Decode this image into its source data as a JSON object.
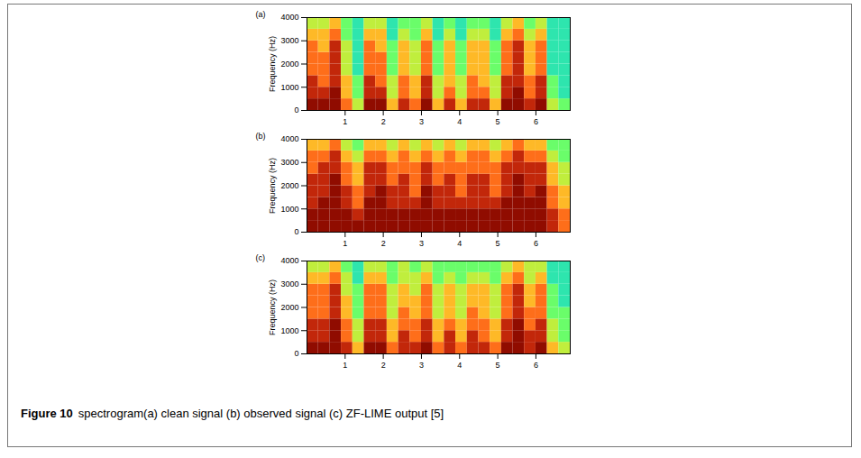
{
  "caption": {
    "label": "Figure 10",
    "text": "spectrogram(a) clean signal (b) observed signal (c) ZF-LIME output [5]"
  },
  "chart_data": [
    {
      "type": "heatmap",
      "title": "(a)",
      "ylabel": "Frequency (Hz)",
      "color": "turbo",
      "xlim": [
        0,
        6.9
      ],
      "xticks": [
        1,
        2,
        3,
        4,
        5,
        6
      ],
      "ylim": [
        0,
        4000
      ],
      "yticks": [
        0,
        1000,
        2000,
        3000,
        4000
      ],
      "x_bins": [
        0,
        0.3,
        0.6,
        0.9,
        1.2,
        1.5,
        1.8,
        2.1,
        2.4,
        2.7,
        3.0,
        3.3,
        3.6,
        3.9,
        4.2,
        4.5,
        4.8,
        5.1,
        5.4,
        5.7,
        6.0,
        6.3,
        6.6,
        6.9
      ],
      "y_bins": [
        0,
        500,
        1000,
        1500,
        2000,
        2500,
        3000,
        3500,
        4000
      ],
      "color_range": [
        0,
        9
      ],
      "values": [
        [
          9,
          9,
          9,
          7,
          5,
          9,
          9,
          6,
          8,
          7,
          9,
          6,
          8,
          6,
          8,
          8,
          6,
          9,
          9,
          8,
          9,
          5,
          4
        ],
        [
          8,
          8,
          9,
          6,
          4,
          8,
          8,
          5,
          7,
          6,
          8,
          5,
          7,
          5,
          7,
          7,
          5,
          8,
          9,
          7,
          8,
          4,
          3
        ],
        [
          8,
          7,
          8,
          6,
          4,
          8,
          7,
          5,
          7,
          6,
          8,
          5,
          6,
          5,
          7,
          6,
          5,
          8,
          8,
          7,
          8,
          4,
          3
        ],
        [
          7,
          7,
          8,
          5,
          3,
          7,
          7,
          4,
          6,
          5,
          7,
          4,
          6,
          4,
          6,
          6,
          4,
          7,
          8,
          6,
          7,
          3,
          3
        ],
        [
          7,
          7,
          8,
          5,
          3,
          7,
          7,
          4,
          6,
          5,
          7,
          4,
          6,
          4,
          6,
          6,
          4,
          7,
          8,
          6,
          7,
          3,
          3
        ],
        [
          7,
          6,
          8,
          5,
          3,
          7,
          6,
          4,
          6,
          5,
          7,
          4,
          6,
          4,
          6,
          6,
          4,
          7,
          8,
          6,
          7,
          3,
          3
        ],
        [
          6,
          6,
          7,
          4,
          3,
          6,
          6,
          3,
          5,
          4,
          6,
          3,
          5,
          3,
          5,
          5,
          3,
          6,
          7,
          5,
          6,
          3,
          3
        ],
        [
          5,
          5,
          6,
          4,
          3,
          5,
          5,
          3,
          4,
          4,
          5,
          3,
          4,
          3,
          4,
          4,
          3,
          5,
          6,
          4,
          5,
          3,
          3
        ]
      ]
    },
    {
      "type": "heatmap",
      "title": "(b)",
      "ylabel": "Frequency (Hz)",
      "color": "turbo",
      "xlim": [
        0,
        6.9
      ],
      "xticks": [
        1,
        2,
        3,
        4,
        5,
        6
      ],
      "ylim": [
        0,
        4000
      ],
      "yticks": [
        0,
        1000,
        2000,
        3000,
        4000
      ],
      "x_bins": [
        0,
        0.3,
        0.6,
        0.9,
        1.2,
        1.5,
        1.8,
        2.1,
        2.4,
        2.7,
        3.0,
        3.3,
        3.6,
        3.9,
        4.2,
        4.5,
        4.8,
        5.1,
        5.4,
        5.7,
        6.0,
        6.3,
        6.6,
        6.9
      ],
      "y_bins": [
        0,
        500,
        1000,
        1500,
        2000,
        2500,
        3000,
        3500,
        4000
      ],
      "color_range": [
        0,
        9
      ],
      "values": [
        [
          9,
          9,
          9,
          9,
          9,
          9,
          9,
          9,
          9,
          9,
          9,
          9,
          9,
          9,
          9,
          9,
          9,
          9,
          9,
          9,
          9,
          8,
          7
        ],
        [
          9,
          9,
          9,
          9,
          8,
          9,
          9,
          9,
          9,
          9,
          9,
          9,
          9,
          9,
          9,
          9,
          9,
          9,
          9,
          9,
          9,
          8,
          7
        ],
        [
          8,
          9,
          9,
          8,
          7,
          9,
          9,
          8,
          8,
          8,
          9,
          8,
          8,
          8,
          8,
          8,
          8,
          9,
          9,
          9,
          9,
          7,
          6
        ],
        [
          8,
          8,
          9,
          8,
          7,
          8,
          9,
          8,
          8,
          7,
          9,
          8,
          8,
          7,
          8,
          8,
          7,
          8,
          9,
          8,
          9,
          7,
          6
        ],
        [
          8,
          8,
          9,
          7,
          6,
          8,
          8,
          7,
          8,
          7,
          8,
          7,
          8,
          7,
          8,
          8,
          7,
          8,
          9,
          8,
          8,
          6,
          5
        ],
        [
          7,
          8,
          8,
          7,
          6,
          8,
          8,
          7,
          7,
          7,
          8,
          7,
          7,
          7,
          7,
          7,
          7,
          8,
          8,
          8,
          8,
          6,
          5
        ],
        [
          7,
          7,
          8,
          6,
          5,
          7,
          7,
          6,
          7,
          6,
          7,
          6,
          7,
          6,
          7,
          7,
          6,
          7,
          8,
          7,
          7,
          5,
          4
        ],
        [
          6,
          6,
          7,
          5,
          4,
          6,
          6,
          5,
          6,
          5,
          6,
          5,
          6,
          5,
          6,
          6,
          5,
          6,
          7,
          6,
          6,
          4,
          4
        ]
      ]
    },
    {
      "type": "heatmap",
      "title": "(c)",
      "ylabel": "Frequency (Hz)",
      "color": "turbo",
      "xlim": [
        0,
        6.9
      ],
      "xticks": [
        1,
        2,
        3,
        4,
        5,
        6
      ],
      "ylim": [
        0,
        4000
      ],
      "yticks": [
        0,
        1000,
        2000,
        3000,
        4000
      ],
      "x_bins": [
        0,
        0.3,
        0.6,
        0.9,
        1.2,
        1.5,
        1.8,
        2.1,
        2.4,
        2.7,
        3.0,
        3.3,
        3.6,
        3.9,
        4.2,
        4.5,
        4.8,
        5.1,
        5.4,
        5.7,
        6.0,
        6.3,
        6.6,
        6.9
      ],
      "y_bins": [
        0,
        500,
        1000,
        1500,
        2000,
        2500,
        3000,
        3500,
        4000
      ],
      "color_range": [
        0,
        9
      ],
      "values": [
        [
          9,
          9,
          9,
          8,
          6,
          9,
          9,
          7,
          8,
          8,
          9,
          7,
          8,
          7,
          8,
          8,
          7,
          9,
          9,
          8,
          9,
          6,
          5
        ],
        [
          8,
          8,
          9,
          7,
          5,
          8,
          8,
          6,
          8,
          7,
          8,
          6,
          8,
          6,
          8,
          7,
          6,
          8,
          9,
          8,
          8,
          5,
          4
        ],
        [
          8,
          8,
          9,
          7,
          5,
          8,
          8,
          6,
          7,
          7,
          8,
          6,
          7,
          6,
          7,
          7,
          6,
          8,
          9,
          7,
          8,
          5,
          4
        ],
        [
          7,
          7,
          8,
          6,
          4,
          7,
          7,
          5,
          7,
          6,
          7,
          5,
          6,
          5,
          7,
          6,
          5,
          7,
          8,
          7,
          7,
          4,
          4
        ],
        [
          7,
          7,
          8,
          6,
          4,
          7,
          7,
          5,
          6,
          6,
          7,
          5,
          6,
          5,
          6,
          6,
          5,
          7,
          8,
          6,
          7,
          4,
          3
        ],
        [
          7,
          7,
          8,
          5,
          4,
          7,
          7,
          5,
          6,
          5,
          7,
          5,
          6,
          5,
          6,
          6,
          5,
          7,
          8,
          6,
          7,
          4,
          3
        ],
        [
          6,
          6,
          7,
          5,
          3,
          6,
          6,
          4,
          5,
          5,
          6,
          4,
          5,
          4,
          5,
          5,
          4,
          6,
          7,
          5,
          6,
          3,
          3
        ],
        [
          5,
          5,
          6,
          4,
          3,
          5,
          5,
          4,
          5,
          4,
          5,
          4,
          4,
          4,
          4,
          4,
          4,
          5,
          6,
          5,
          5,
          3,
          3
        ]
      ]
    }
  ]
}
